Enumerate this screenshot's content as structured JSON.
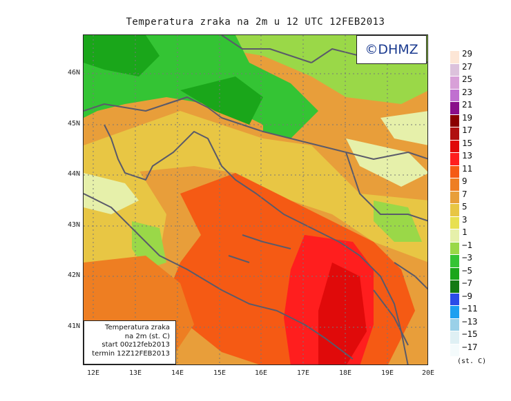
{
  "title": "Temperatura zraka na 2m u 12 UTC 12FEB2013",
  "copyright": "©DHMZ",
  "info_box": {
    "line1": "Temperatura zraka",
    "line2": "na 2m (st. C)",
    "line3": "start 00z12feb2013",
    "line4": "termin 12Z12FEB2013"
  },
  "lat_labels": [
    "46N",
    "45N",
    "44N",
    "43N",
    "42N",
    "41N"
  ],
  "lon_labels": [
    "12E",
    "13E",
    "14E",
    "15E",
    "16E",
    "17E",
    "18E",
    "19E",
    "20E"
  ],
  "legend": {
    "unit": "(st. C)",
    "labels": [
      "29",
      "27",
      "25",
      "23",
      "21",
      "19",
      "17",
      "15",
      "13",
      "11",
      "9",
      "7",
      "5",
      "3",
      "1",
      "−1",
      "−3",
      "−5",
      "−7",
      "−9",
      "−11",
      "−13",
      "−15",
      "−17"
    ],
    "colors": [
      "#fde6d6",
      "#dcc2dc",
      "#d8a0d8",
      "#c070d0",
      "#8a0e8a",
      "#8b0000",
      "#b01010",
      "#e00a0a",
      "#ff1e1e",
      "#f55a14",
      "#ee7e22",
      "#e89e3a",
      "#e8c644",
      "#e8e050",
      "#e6f0aa",
      "#9ad848",
      "#34c434",
      "#1aa61a",
      "#137a13",
      "#2b4ce8",
      "#1da0f0",
      "#9ad0e8",
      "#dff0f4",
      "#f4fbfc"
    ]
  }
}
